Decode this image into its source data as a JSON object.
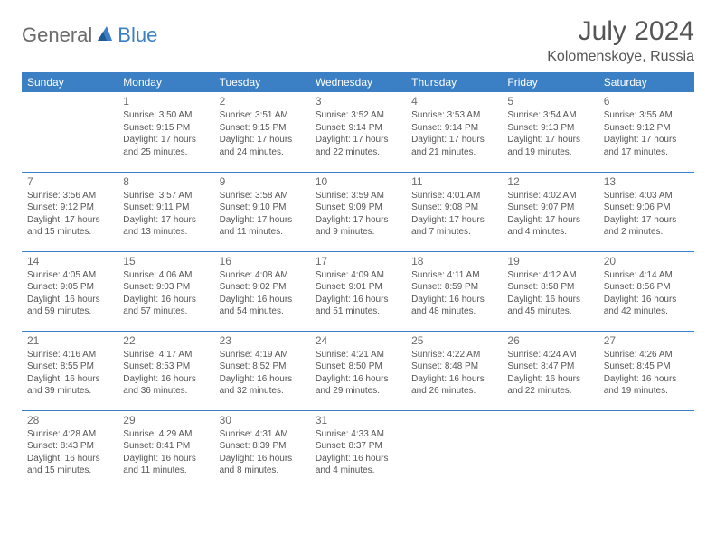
{
  "logo": {
    "general": "General",
    "blue": "Blue"
  },
  "title": "July 2024",
  "location": "Kolomenskoye, Russia",
  "header_bg": "#3b7fc4",
  "header_fg": "#ffffff",
  "text_color": "#555555",
  "weekdays": [
    "Sunday",
    "Monday",
    "Tuesday",
    "Wednesday",
    "Thursday",
    "Friday",
    "Saturday"
  ],
  "weeks": [
    [
      null,
      {
        "n": "1",
        "sr": "Sunrise: 3:50 AM",
        "ss": "Sunset: 9:15 PM",
        "d1": "Daylight: 17 hours",
        "d2": "and 25 minutes."
      },
      {
        "n": "2",
        "sr": "Sunrise: 3:51 AM",
        "ss": "Sunset: 9:15 PM",
        "d1": "Daylight: 17 hours",
        "d2": "and 24 minutes."
      },
      {
        "n": "3",
        "sr": "Sunrise: 3:52 AM",
        "ss": "Sunset: 9:14 PM",
        "d1": "Daylight: 17 hours",
        "d2": "and 22 minutes."
      },
      {
        "n": "4",
        "sr": "Sunrise: 3:53 AM",
        "ss": "Sunset: 9:14 PM",
        "d1": "Daylight: 17 hours",
        "d2": "and 21 minutes."
      },
      {
        "n": "5",
        "sr": "Sunrise: 3:54 AM",
        "ss": "Sunset: 9:13 PM",
        "d1": "Daylight: 17 hours",
        "d2": "and 19 minutes."
      },
      {
        "n": "6",
        "sr": "Sunrise: 3:55 AM",
        "ss": "Sunset: 9:12 PM",
        "d1": "Daylight: 17 hours",
        "d2": "and 17 minutes."
      }
    ],
    [
      {
        "n": "7",
        "sr": "Sunrise: 3:56 AM",
        "ss": "Sunset: 9:12 PM",
        "d1": "Daylight: 17 hours",
        "d2": "and 15 minutes."
      },
      {
        "n": "8",
        "sr": "Sunrise: 3:57 AM",
        "ss": "Sunset: 9:11 PM",
        "d1": "Daylight: 17 hours",
        "d2": "and 13 minutes."
      },
      {
        "n": "9",
        "sr": "Sunrise: 3:58 AM",
        "ss": "Sunset: 9:10 PM",
        "d1": "Daylight: 17 hours",
        "d2": "and 11 minutes."
      },
      {
        "n": "10",
        "sr": "Sunrise: 3:59 AM",
        "ss": "Sunset: 9:09 PM",
        "d1": "Daylight: 17 hours",
        "d2": "and 9 minutes."
      },
      {
        "n": "11",
        "sr": "Sunrise: 4:01 AM",
        "ss": "Sunset: 9:08 PM",
        "d1": "Daylight: 17 hours",
        "d2": "and 7 minutes."
      },
      {
        "n": "12",
        "sr": "Sunrise: 4:02 AM",
        "ss": "Sunset: 9:07 PM",
        "d1": "Daylight: 17 hours",
        "d2": "and 4 minutes."
      },
      {
        "n": "13",
        "sr": "Sunrise: 4:03 AM",
        "ss": "Sunset: 9:06 PM",
        "d1": "Daylight: 17 hours",
        "d2": "and 2 minutes."
      }
    ],
    [
      {
        "n": "14",
        "sr": "Sunrise: 4:05 AM",
        "ss": "Sunset: 9:05 PM",
        "d1": "Daylight: 16 hours",
        "d2": "and 59 minutes."
      },
      {
        "n": "15",
        "sr": "Sunrise: 4:06 AM",
        "ss": "Sunset: 9:03 PM",
        "d1": "Daylight: 16 hours",
        "d2": "and 57 minutes."
      },
      {
        "n": "16",
        "sr": "Sunrise: 4:08 AM",
        "ss": "Sunset: 9:02 PM",
        "d1": "Daylight: 16 hours",
        "d2": "and 54 minutes."
      },
      {
        "n": "17",
        "sr": "Sunrise: 4:09 AM",
        "ss": "Sunset: 9:01 PM",
        "d1": "Daylight: 16 hours",
        "d2": "and 51 minutes."
      },
      {
        "n": "18",
        "sr": "Sunrise: 4:11 AM",
        "ss": "Sunset: 8:59 PM",
        "d1": "Daylight: 16 hours",
        "d2": "and 48 minutes."
      },
      {
        "n": "19",
        "sr": "Sunrise: 4:12 AM",
        "ss": "Sunset: 8:58 PM",
        "d1": "Daylight: 16 hours",
        "d2": "and 45 minutes."
      },
      {
        "n": "20",
        "sr": "Sunrise: 4:14 AM",
        "ss": "Sunset: 8:56 PM",
        "d1": "Daylight: 16 hours",
        "d2": "and 42 minutes."
      }
    ],
    [
      {
        "n": "21",
        "sr": "Sunrise: 4:16 AM",
        "ss": "Sunset: 8:55 PM",
        "d1": "Daylight: 16 hours",
        "d2": "and 39 minutes."
      },
      {
        "n": "22",
        "sr": "Sunrise: 4:17 AM",
        "ss": "Sunset: 8:53 PM",
        "d1": "Daylight: 16 hours",
        "d2": "and 36 minutes."
      },
      {
        "n": "23",
        "sr": "Sunrise: 4:19 AM",
        "ss": "Sunset: 8:52 PM",
        "d1": "Daylight: 16 hours",
        "d2": "and 32 minutes."
      },
      {
        "n": "24",
        "sr": "Sunrise: 4:21 AM",
        "ss": "Sunset: 8:50 PM",
        "d1": "Daylight: 16 hours",
        "d2": "and 29 minutes."
      },
      {
        "n": "25",
        "sr": "Sunrise: 4:22 AM",
        "ss": "Sunset: 8:48 PM",
        "d1": "Daylight: 16 hours",
        "d2": "and 26 minutes."
      },
      {
        "n": "26",
        "sr": "Sunrise: 4:24 AM",
        "ss": "Sunset: 8:47 PM",
        "d1": "Daylight: 16 hours",
        "d2": "and 22 minutes."
      },
      {
        "n": "27",
        "sr": "Sunrise: 4:26 AM",
        "ss": "Sunset: 8:45 PM",
        "d1": "Daylight: 16 hours",
        "d2": "and 19 minutes."
      }
    ],
    [
      {
        "n": "28",
        "sr": "Sunrise: 4:28 AM",
        "ss": "Sunset: 8:43 PM",
        "d1": "Daylight: 16 hours",
        "d2": "and 15 minutes."
      },
      {
        "n": "29",
        "sr": "Sunrise: 4:29 AM",
        "ss": "Sunset: 8:41 PM",
        "d1": "Daylight: 16 hours",
        "d2": "and 11 minutes."
      },
      {
        "n": "30",
        "sr": "Sunrise: 4:31 AM",
        "ss": "Sunset: 8:39 PM",
        "d1": "Daylight: 16 hours",
        "d2": "and 8 minutes."
      },
      {
        "n": "31",
        "sr": "Sunrise: 4:33 AM",
        "ss": "Sunset: 8:37 PM",
        "d1": "Daylight: 16 hours",
        "d2": "and 4 minutes."
      },
      null,
      null,
      null
    ]
  ]
}
